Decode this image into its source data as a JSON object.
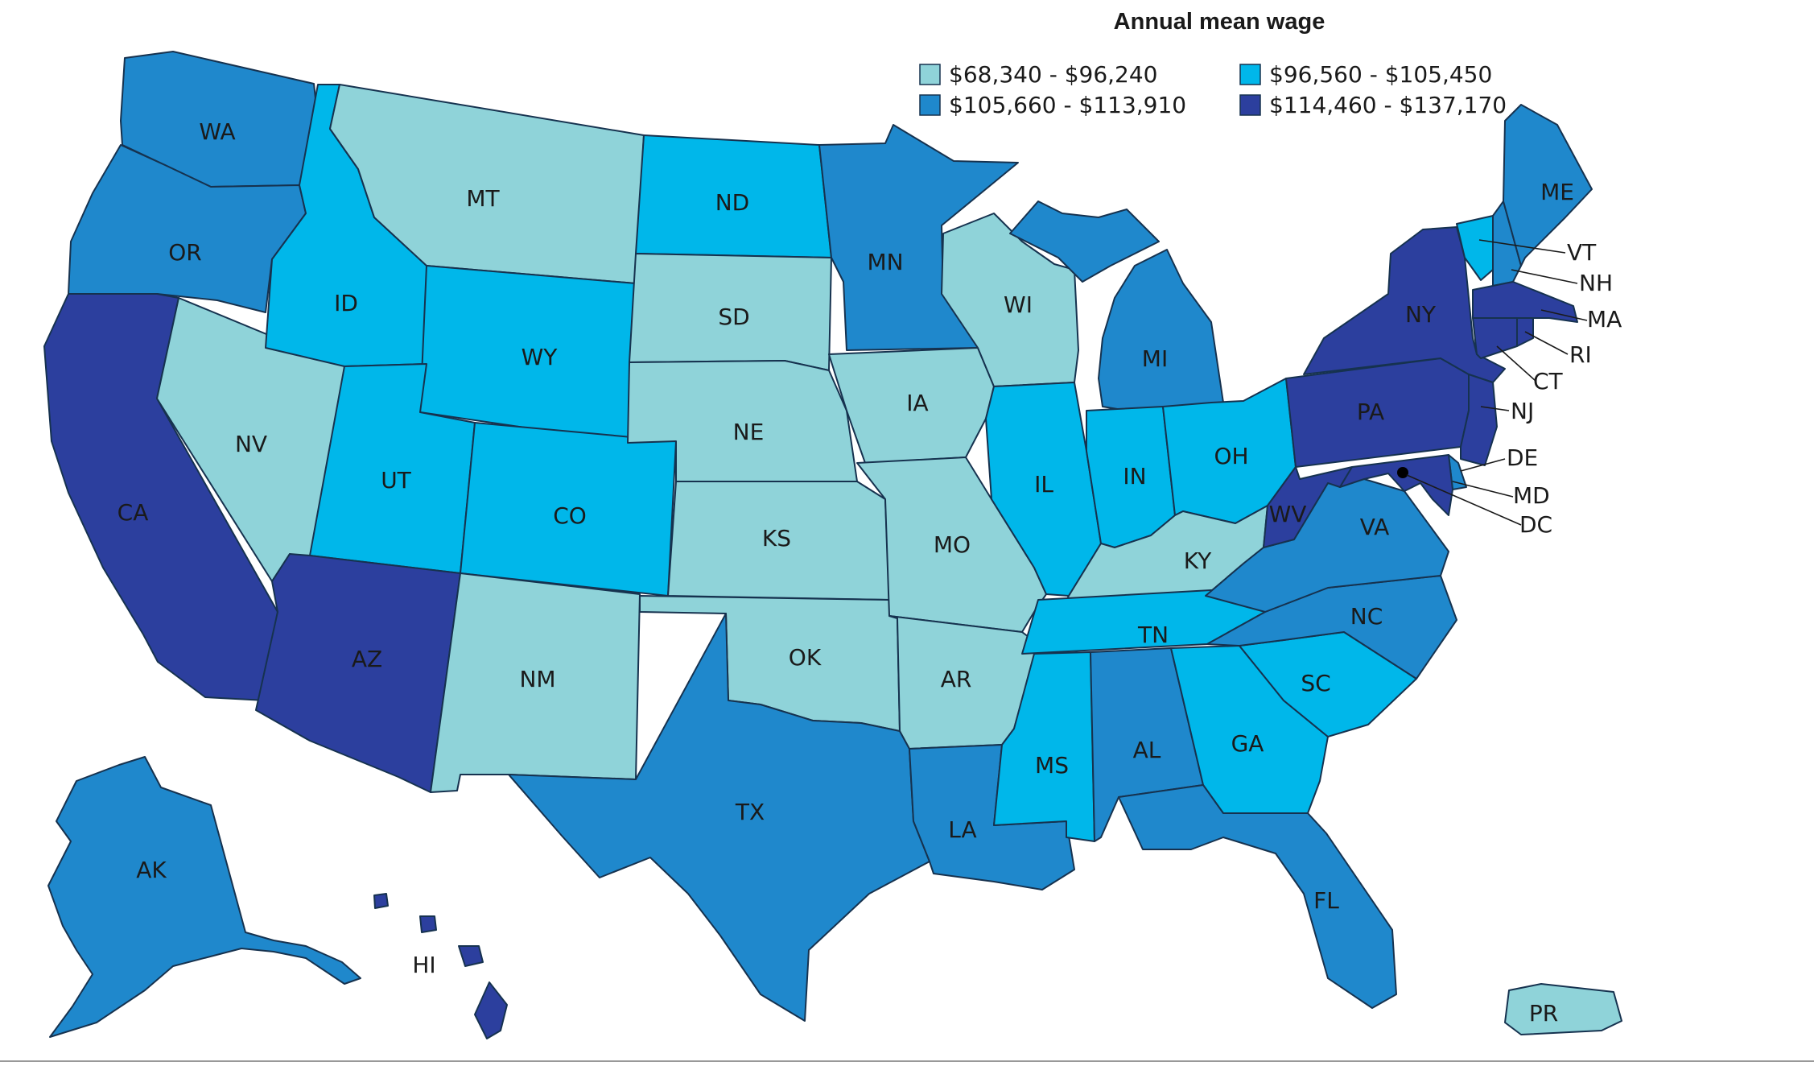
{
  "map": {
    "title": "Annual mean wage",
    "legend_placement": "top-right",
    "bins": [
      {
        "label": "$68,340 - $96,240",
        "color": "#8fd3d9"
      },
      {
        "label": "$96,560 - $105,450",
        "color": "#00b7ea"
      },
      {
        "label": "$105,660 - $113,910",
        "color": "#1f88cc"
      },
      {
        "label": "$114,460 - $137,170",
        "color": "#2c3f9e"
      }
    ],
    "states": [
      {
        "code": "WA",
        "bin": 2
      },
      {
        "code": "OR",
        "bin": 2
      },
      {
        "code": "CA",
        "bin": 3
      },
      {
        "code": "NV",
        "bin": 0
      },
      {
        "code": "ID",
        "bin": 1
      },
      {
        "code": "MT",
        "bin": 0
      },
      {
        "code": "WY",
        "bin": 1
      },
      {
        "code": "UT",
        "bin": 1
      },
      {
        "code": "CO",
        "bin": 1
      },
      {
        "code": "AZ",
        "bin": 3
      },
      {
        "code": "NM",
        "bin": 0
      },
      {
        "code": "ND",
        "bin": 1
      },
      {
        "code": "SD",
        "bin": 0
      },
      {
        "code": "NE",
        "bin": 0
      },
      {
        "code": "KS",
        "bin": 0
      },
      {
        "code": "OK",
        "bin": 0
      },
      {
        "code": "TX",
        "bin": 2
      },
      {
        "code": "MN",
        "bin": 2
      },
      {
        "code": "IA",
        "bin": 0
      },
      {
        "code": "MO",
        "bin": 0
      },
      {
        "code": "AR",
        "bin": 0
      },
      {
        "code": "LA",
        "bin": 2
      },
      {
        "code": "WI",
        "bin": 0
      },
      {
        "code": "IL",
        "bin": 1
      },
      {
        "code": "MI",
        "bin": 2
      },
      {
        "code": "IN",
        "bin": 1
      },
      {
        "code": "OH",
        "bin": 1
      },
      {
        "code": "KY",
        "bin": 0
      },
      {
        "code": "TN",
        "bin": 1
      },
      {
        "code": "MS",
        "bin": 1
      },
      {
        "code": "AL",
        "bin": 2
      },
      {
        "code": "GA",
        "bin": 1
      },
      {
        "code": "FL",
        "bin": 2
      },
      {
        "code": "SC",
        "bin": 1
      },
      {
        "code": "NC",
        "bin": 2
      },
      {
        "code": "VA",
        "bin": 2
      },
      {
        "code": "WV",
        "bin": 3
      },
      {
        "code": "PA",
        "bin": 3
      },
      {
        "code": "NY",
        "bin": 3
      },
      {
        "code": "VT",
        "bin": 1
      },
      {
        "code": "NH",
        "bin": 2
      },
      {
        "code": "ME",
        "bin": 2
      },
      {
        "code": "MA",
        "bin": 3
      },
      {
        "code": "RI",
        "bin": 3
      },
      {
        "code": "CT",
        "bin": 3
      },
      {
        "code": "NJ",
        "bin": 3
      },
      {
        "code": "DE",
        "bin": 2
      },
      {
        "code": "MD",
        "bin": 3
      },
      {
        "code": "DC",
        "bin": 3
      },
      {
        "code": "AK",
        "bin": 2
      },
      {
        "code": "HI",
        "bin": 3
      },
      {
        "code": "PR",
        "bin": 0
      }
    ]
  }
}
